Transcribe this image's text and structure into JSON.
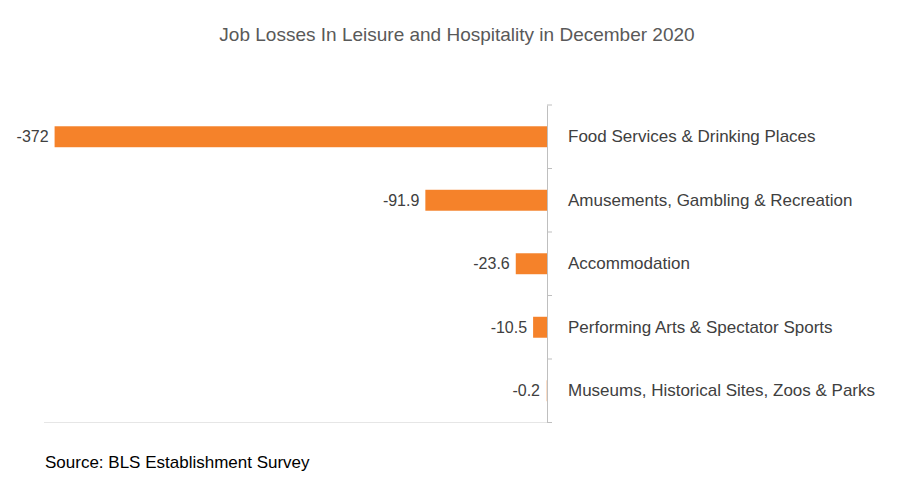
{
  "chart_data": {
    "type": "bar",
    "orientation": "horizontal",
    "title": "Job Losses In Leisure and Hospitality in December 2020",
    "source": "Source: BLS Establishment Survey",
    "categories": [
      "Food Services & Drinking Places",
      "Amusements, Gambling & Recreation",
      "Accommodation",
      "Performing Arts & Spectator Sports",
      "Museums, Historical Sites, Zoos & Parks"
    ],
    "values": [
      -372,
      -91.9,
      -23.6,
      -10.5,
      -0.2
    ],
    "color": "#f5822a",
    "xlim": [
      -380,
      0
    ],
    "data_labels": true,
    "tick_labels": "y",
    "grid": false
  }
}
